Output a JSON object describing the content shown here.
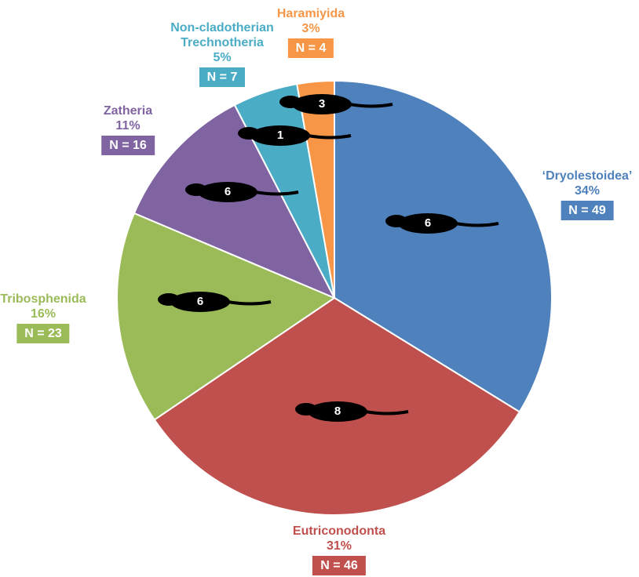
{
  "chart_data": {
    "type": "pie",
    "categories": [
      "‘Dryolestoidea’",
      "Eutriconodonta",
      "Tribosphenida",
      "Zatheria",
      "Non-cladotherian Trechnotheria",
      "Haramiyida"
    ],
    "values": [
      49,
      46,
      23,
      16,
      7,
      4
    ],
    "value_labels": [
      "N = 49",
      "N = 46",
      "N = 23",
      "N = 16",
      "N = 7",
      "N = 4"
    ],
    "percent_labels": [
      "34%",
      "31%",
      "16%",
      "11%",
      "5%",
      "3%"
    ],
    "colors": [
      "#4f81bd",
      "#c0504d",
      "#9bbb59",
      "#8064a2",
      "#4bacc6",
      "#f79646"
    ],
    "icon_numbers": [
      6,
      8,
      6,
      6,
      1,
      3
    ]
  }
}
